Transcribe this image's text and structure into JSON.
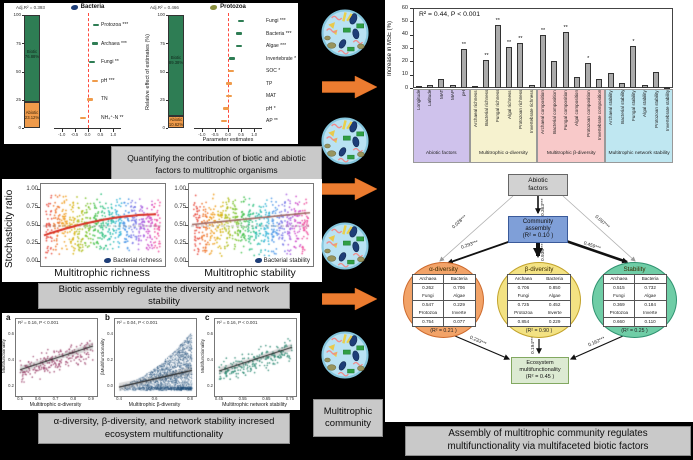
{
  "captions": {
    "c1": "Quantifying the contribution of biotic and abiotic factors to multitrophic organisms",
    "c2": "Biotic assembly regulate the diversity and network stability",
    "c3": "α-diversity, β-diversity, and network stability incresed ecosystem multifunctionality",
    "c4": "Assembly of multitrophic community regulates multifunctionality via multifaceted biotic factors",
    "community_label": "Multitrophic community"
  },
  "colors": {
    "biotic_green": "#2e7d54",
    "abiotic_orange": "#ef9b4b",
    "zero_line_red": "#ff4a3d",
    "bar_gray": "#ababab",
    "arrow_orange": "#ec7c30",
    "rainbow": [
      "#e8483b",
      "#ef7228",
      "#f09c1e",
      "#d9b414",
      "#b0bd1c",
      "#7cc32f",
      "#46c24e",
      "#2dc07e",
      "#28bcae",
      "#2fb3d6",
      "#4b96e8",
      "#7a7ce8",
      "#a863e0",
      "#cf4ec9",
      "#ef4f9e"
    ]
  },
  "chart_data": [
    {
      "type": "dot",
      "id": "forest_bacteria",
      "title": "Bacteria",
      "annotation": "Adj.R² = 0.393",
      "biotic_name": "Biotic",
      "biotic_pct": "76.88%",
      "abiotic_name": "Abiotic",
      "abiotic_pct": "23.12%",
      "biotic_value": 76.88,
      "abiotic_value": 23.12,
      "categories": [
        "Protozoa ***",
        "Archaea ***",
        "Fungi **",
        "pH ***",
        "TN",
        "NH₄⁺-N **"
      ],
      "values": [
        0.32,
        0.3,
        0.18,
        0.28,
        0.1,
        -0.18
      ],
      "types": [
        "biotic",
        "biotic",
        "biotic",
        "abiotic",
        "abiotic",
        "abiotic"
      ],
      "yticks": [
        0,
        25,
        50,
        75,
        100
      ],
      "xticks": [
        "-1.0",
        "-0.5",
        "0.0",
        "0.5",
        "1.0"
      ],
      "xlim": [
        -1.3,
        1.3
      ],
      "icon_color": "#1e3e78"
    },
    {
      "type": "dot",
      "id": "forest_protozoa",
      "title": "Protozoa",
      "annotation": "Adj.R² = 0.466",
      "ylabel": "Relative effect of estimates (%)",
      "xlabel": "Parameter estimates",
      "biotic_name": "Biotic",
      "biotic_pct": "89.38%",
      "abiotic_name": "Abiotic",
      "abiotic_pct": "10.62%",
      "biotic_value": 89.38,
      "abiotic_value": 10.62,
      "categories": [
        "Fungi ***",
        "Bacteria ***",
        "Algae ***",
        "Invertebrate *",
        "SOC *",
        "TP",
        "MAT",
        "pH *",
        "AP **"
      ],
      "values": [
        0.5,
        0.42,
        0.42,
        0.15,
        0.12,
        0.05,
        0.03,
        -0.08,
        -0.15
      ],
      "types": [
        "biotic",
        "biotic",
        "biotic",
        "biotic",
        "abiotic",
        "abiotic",
        "abiotic",
        "abiotic",
        "abiotic"
      ],
      "yticks": [
        0,
        25,
        50,
        75,
        100
      ],
      "xticks": [
        "-1.0",
        "-0.5",
        "0.0",
        "0.5",
        "1.0"
      ],
      "xlim": [
        -1.3,
        1.3
      ],
      "icon_color": "#8a8f3d"
    },
    {
      "type": "bar",
      "id": "mse_importance",
      "title": "R² = 0.44, P < 0.001",
      "ylabel": "Increase in MSE (%)",
      "ylim": [
        0,
        60
      ],
      "yticks": [
        0,
        10,
        20,
        30,
        40,
        50,
        60
      ],
      "categories": [
        "Longitude",
        "Latitude",
        "MAT",
        "MAP",
        "pH",
        "Archaeal richness",
        "Bacterial richness",
        "Fungal richness",
        "Algal richness",
        "Protozoan richness",
        "Invertebrate richness",
        "Archaeal composition",
        "Bacterial composition",
        "Fungal composition",
        "Algal composition",
        "Protozoan composition",
        "Invertebrate composition",
        "Archaeal stability",
        "Bacterial stability",
        "Fungal stability",
        "Algal stability",
        "Protozoan stability",
        "Invertebrate stability"
      ],
      "values": [
        1.5,
        2,
        7,
        2.5,
        29.5,
        1.5,
        21,
        47,
        30.5,
        33.5,
        2.5,
        40,
        20.5,
        42,
        8,
        19,
        7,
        11,
        3.5,
        31.5,
        2,
        12,
        1
      ],
      "sig": [
        "",
        "",
        "",
        "",
        "**",
        "",
        "**",
        "**",
        "**",
        "**",
        "",
        "**",
        "",
        "**",
        "",
        "*",
        "",
        "",
        "",
        "*",
        "",
        "",
        ""
      ],
      "groups": [
        {
          "label": "Abiotic factors",
          "start": 0,
          "count": 5,
          "color": "#cfc2ec"
        },
        {
          "label": "Multitrophic α-diversity",
          "start": 5,
          "count": 6,
          "color": "#f6f2cf"
        },
        {
          "label": "Multitrophic β-diversity",
          "start": 11,
          "count": 6,
          "color": "#f8c9c9"
        },
        {
          "label": "Multitrophic network stability",
          "start": 17,
          "count": 6,
          "color": "#bfe7f1"
        }
      ]
    },
    {
      "type": "scatter",
      "id": "stochasticity",
      "ylabel": "Stochasticity ratio",
      "yticks": [
        "1.00",
        "0.75",
        "0.50",
        "0.25",
        "0.00"
      ],
      "ref_line": 0.5,
      "plots": [
        {
          "xlabel": "Multitrophic richness",
          "legend": "Bacterial richness",
          "trend_start": 0.37,
          "trend_end": 0.665,
          "trend_color": "#d92f23",
          "curved": true
        },
        {
          "xlabel": "Multitrophic stability",
          "legend": "Bacterial stability",
          "trend_start": 0.52,
          "trend_end": 0.685,
          "trend_color": "#a06a64",
          "curved": false
        }
      ]
    },
    {
      "type": "scatter",
      "id": "multifunctionality",
      "plots": [
        {
          "tag": "a",
          "annotation": "R² = 0.16, P < 0.001",
          "xlabel": "Multitrophic α-diversity",
          "ylabel": "Multifunctionality",
          "xticks": [
            "0.5",
            "0.6",
            "0.7",
            "0.8",
            "0.9"
          ],
          "yticks": [
            "0.2",
            "0.4",
            "0.6"
          ],
          "color": "#a34d74",
          "kind": "loose",
          "trend_start": 0.26,
          "trend_end": 0.45
        },
        {
          "tag": "b",
          "annotation": "R² = 0.04, P < 0.001",
          "xlabel": "Multitrophic β-diversity",
          "ylabel": "βMultifunctionality",
          "xticks": [
            "0.4",
            "0.6",
            "0.8"
          ],
          "yticks": [
            "0.0",
            "0.2",
            "0.4"
          ],
          "color": "#1f4e79",
          "kind": "dense",
          "trend_start": 0.025,
          "trend_end": 0.145
        },
        {
          "tag": "c",
          "annotation": "R² = 0.16, P < 0.001",
          "xlabel": "Multitrophic network stability",
          "ylabel": "Multifunctionality",
          "xticks": [
            "0.45",
            "0.55",
            "0.65",
            "0.75"
          ],
          "yticks": [
            "0.2",
            "0.4",
            "0.6"
          ],
          "color": "#2e8b74",
          "kind": "loose",
          "trend_start": 0.25,
          "trend_end": 0.44
        }
      ]
    }
  ],
  "sem": {
    "abiotic_box": "Abiotic\nfactors",
    "assembly_box": "Community\nassembly\n(R² = 0.10 )",
    "emf_box": "Ecosystem\nmultifunctionality\n(R² = 0.45 )",
    "nodes": [
      {
        "title": "α-diversity",
        "r2": "(R² = 0.21 )",
        "fill": "#f2a368",
        "border": "#cd6a2d",
        "cells": [
          [
            "Archaea",
            "Bacteria"
          ],
          [
            "0.262",
            "0.706"
          ],
          [
            "Fungi",
            "Algae"
          ],
          [
            "0.547",
            "0.229"
          ],
          [
            "Protozoa",
            "Inverte"
          ],
          [
            "0.754",
            "0.077"
          ]
        ]
      },
      {
        "title": "β-diversity",
        "r2": "(R² = 0.90 )",
        "fill": "#f3e283",
        "border": "#c2a22a",
        "cells": [
          [
            "Archaea",
            "Bacteria"
          ],
          [
            "0.706",
            "0.850"
          ],
          [
            "Fungi",
            "Algae"
          ],
          [
            "0.725",
            "0.452"
          ],
          [
            "Protozoa",
            "Inverte"
          ],
          [
            "0.854",
            "0.229"
          ]
        ]
      },
      {
        "title": "Stability",
        "r2": "(R² = 0.25 )",
        "fill": "#6fcda6",
        "border": "#2f9270",
        "cells": [
          [
            "Archaea",
            "Bacteria"
          ],
          [
            "0.515",
            "0.732"
          ],
          [
            "Fungi",
            "Algae"
          ],
          [
            "0.369",
            "0.184"
          ],
          [
            "Protozoa",
            "Inverte"
          ],
          [
            "0.660",
            "0.110"
          ]
        ]
      }
    ],
    "edges": {
      "abiotic_alpha": "0.028***",
      "abiotic_assembly": "0.363***",
      "abiotic_stability": "0.097***",
      "assembly_alpha": "0.293***",
      "assembly_beta": "0.936***",
      "assembly_stability": "0.459***",
      "alpha_emf": "0.233***",
      "beta_emf": "0.194***",
      "stability_emf": "0.162***"
    }
  }
}
